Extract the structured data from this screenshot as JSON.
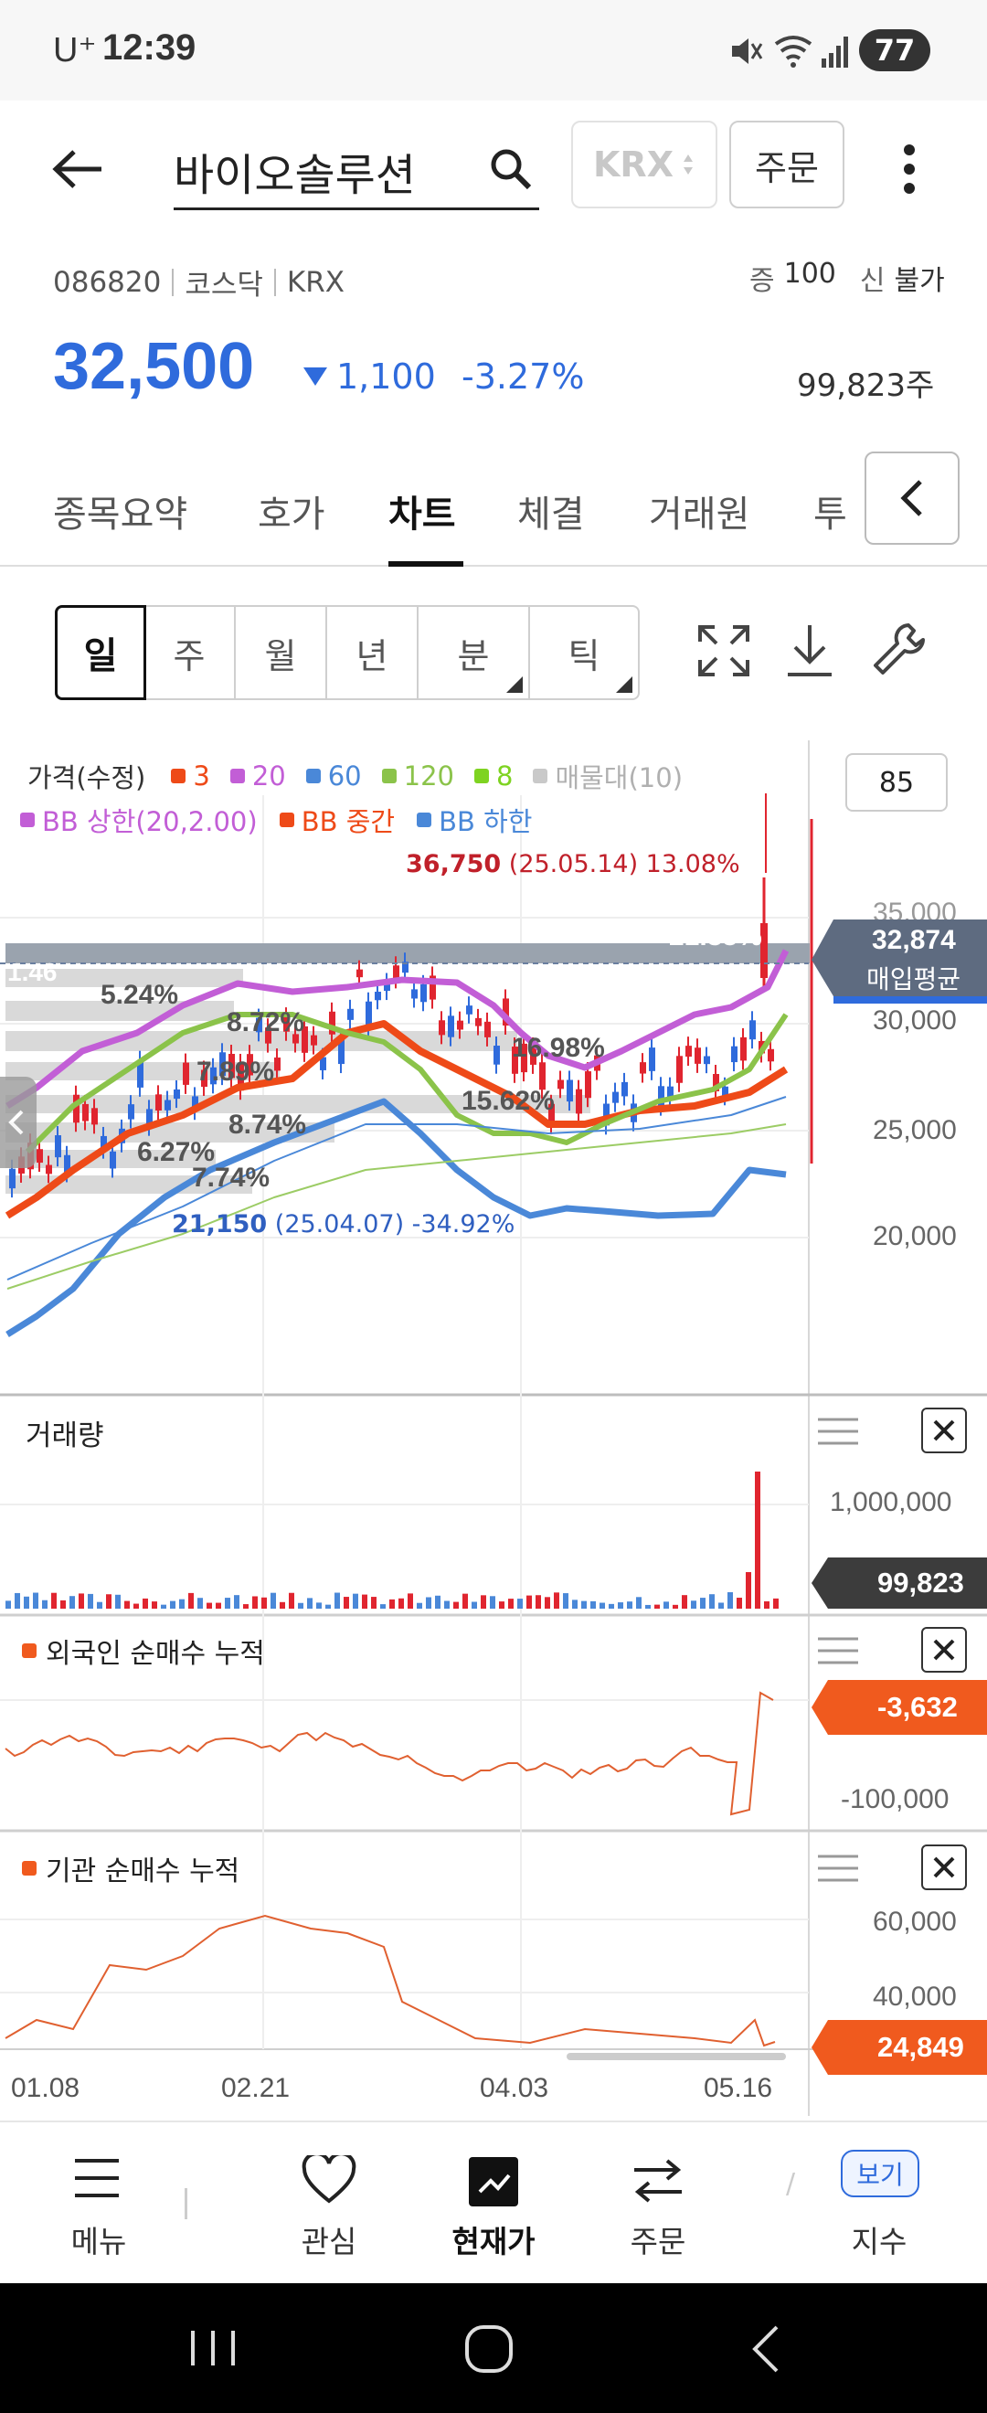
{
  "status_bar": {
    "carrier": "U⁺",
    "time": "12:39",
    "battery": "77"
  },
  "header": {
    "title": "바이오솔루션",
    "exchange": "KRX",
    "order_button": "주문"
  },
  "stock": {
    "code": "086820",
    "market": "코스닥",
    "exchange": "KRX",
    "margin_label": "증",
    "margin_value": "100",
    "credit_label": "신",
    "credit_value": "불가",
    "price": "32,500",
    "change": "1,100",
    "change_pct": "-3.27%",
    "volume": "99,823주"
  },
  "tabs": [
    "종목요약",
    "호가",
    "차트",
    "체결",
    "거래원",
    "투"
  ],
  "active_tab": "차트",
  "period": [
    "일",
    "주",
    "월",
    "년",
    "분",
    "틱"
  ],
  "chart": {
    "legend_title": "가격(수정)",
    "legend": [
      {
        "label": "3",
        "color": "#ee4a18"
      },
      {
        "label": "20",
        "color": "#c25ed6"
      },
      {
        "label": "60",
        "color": "#4a88d8"
      },
      {
        "label": "120",
        "color": "#8bc34a"
      },
      {
        "label": "8",
        "color": "#7ed321"
      },
      {
        "label": "매물대(10)",
        "color": "#c9c9c9"
      }
    ],
    "legend2": [
      {
        "label": "BB 상한(20,2.00)",
        "color": "#c25ed6"
      },
      {
        "label": "BB 중간",
        "color": "#ee4a18"
      },
      {
        "label": "BB 하한",
        "color": "#4a88d8"
      }
    ],
    "period_count": "85",
    "high_label_price": "36,750",
    "high_label_rest": "(25.05.14) 13.08%",
    "low_label_price": "21,150",
    "low_label_rest": "(25.04.07) -34.92%",
    "price_axis": [
      "35,000",
      "30,000",
      "25,000",
      "20,000"
    ],
    "avg_price": "32,874",
    "avg_label": "매입평균",
    "volume_profile_pcts": [
      "21.35%",
      "5.24%",
      "8.72%",
      "7.89%",
      "16.98%",
      "15.62%",
      "8.74%",
      "6.27%",
      "7.74%"
    ],
    "left_partial_label": "1.46",
    "volume_title": "거래량",
    "volume_axis": "1,000,000",
    "volume_current": "99,823",
    "foreign_title": "외국인 순매수 누적",
    "foreign_current": "-3,632",
    "foreign_axis": "-100,000",
    "inst_title": "기관 순매수 누적",
    "inst_axis_top": "60,000",
    "inst_axis_mid": "40,000",
    "inst_current": "24,849",
    "dates": [
      "01.08",
      "02.21",
      "04.03",
      "05.16"
    ]
  },
  "bottom_nav": [
    {
      "label": "메뉴",
      "icon": "menu-icon"
    },
    {
      "label": "관심",
      "icon": "heart-icon"
    },
    {
      "label": "현재가",
      "icon": "chart-icon"
    },
    {
      "label": "주문",
      "icon": "swap-icon"
    },
    {
      "label": "지수",
      "icon": "view-icon",
      "badge": "보기"
    }
  ],
  "colors": {
    "up": "#e0252f",
    "down": "#2f6bdc",
    "accent_orange": "#f05a1e"
  }
}
